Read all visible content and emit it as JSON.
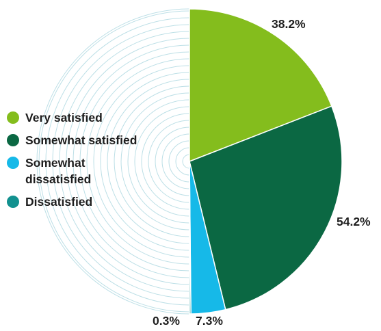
{
  "chart_data": {
    "type": "pie",
    "labels": [
      "Very satisfied",
      "Somewhat satisfied",
      "Somewhat dissatisfied",
      "Dissatisfied"
    ],
    "values": [
      38.2,
      54.2,
      7.3,
      0.3
    ],
    "value_labels": [
      "38.2%",
      "54.2%",
      "7.3%",
      "0.3%"
    ],
    "colors": [
      "#84bd1d",
      "#0b6843",
      "#16b9e8",
      "#12918f"
    ],
    "start_angle": "12 o'clock",
    "direction": "clockwise",
    "half_circle_only": true,
    "background": "concentric circle lines on left half",
    "legend_position": "left"
  }
}
